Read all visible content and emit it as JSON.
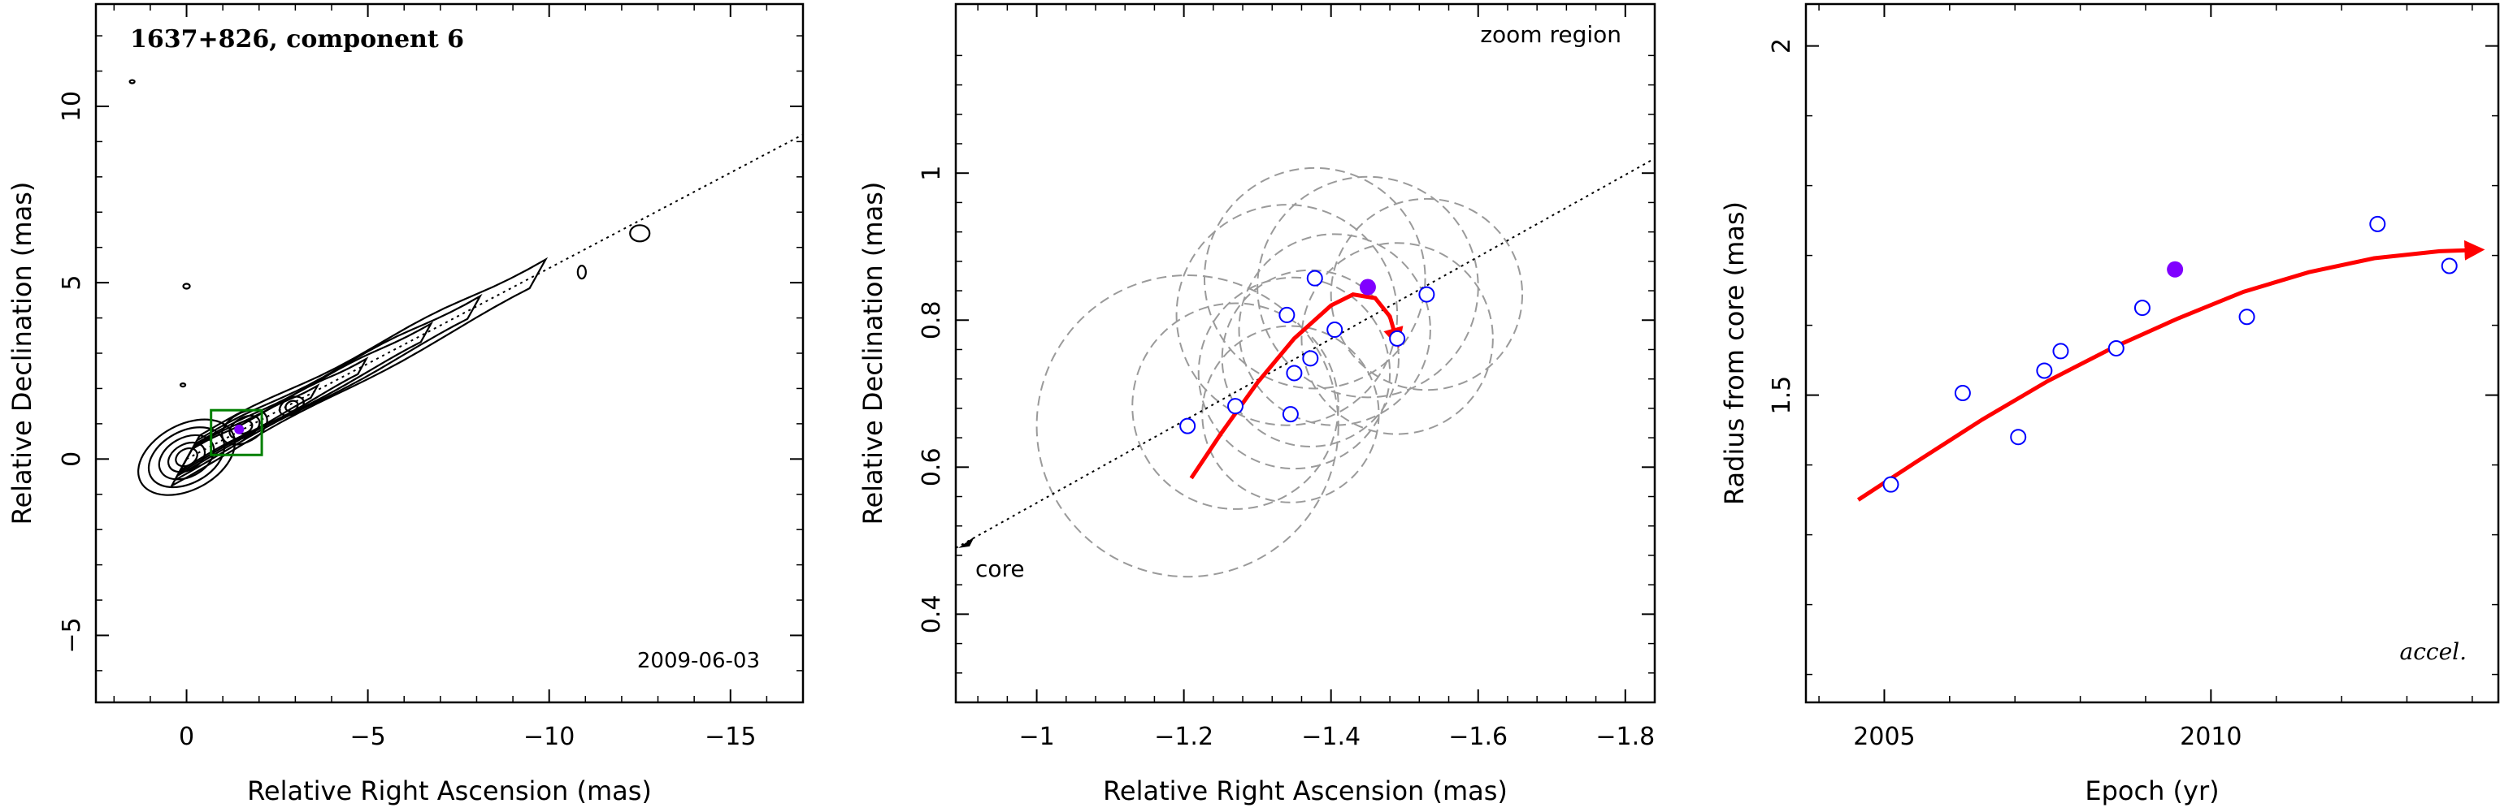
{
  "chart_data": [
    {
      "type": "contour",
      "title": "1637+826, component 6",
      "annotation": "2009-06-03",
      "xlabel": "Relative Right Ascension (mas)",
      "ylabel": "Relative Declination (mas)",
      "xlim": [
        2.5,
        -17
      ],
      "ylim": [
        -6.9,
        12.9
      ],
      "xticks": [
        0,
        -5,
        -10,
        -15
      ],
      "xtick_labels": [
        "0",
        "−5",
        "−10",
        "−15"
      ],
      "yticks": [
        -5,
        0,
        5,
        10
      ],
      "ytick_labels": [
        "−5",
        "0",
        "5",
        "10"
      ],
      "jet_axis_line": {
        "x": [
          0,
          -17
        ],
        "y": [
          0,
          9.2
        ]
      },
      "component_position": {
        "x": -1.45,
        "y": 0.84
      },
      "zoom_box": {
        "x": [
          -0.9,
          -1.85
        ],
        "y": [
          0.3,
          1.2
        ]
      }
    },
    {
      "type": "scatter",
      "title": "",
      "annotations": [
        "zoom region",
        "core"
      ],
      "xlabel": "Relative Right Ascension (mas)",
      "ylabel": "Relative Declination (mas)",
      "xlim": [
        -0.89,
        -1.84
      ],
      "ylim": [
        0.28,
        1.23
      ],
      "xticks": [
        -1,
        -1.2,
        -1.4,
        -1.6,
        -1.8
      ],
      "xtick_labels": [
        "−1",
        "−1.2",
        "−1.4",
        "−1.6",
        "−1.8"
      ],
      "yticks": [
        0.4,
        0.6,
        0.8,
        1
      ],
      "ytick_labels": [
        "0.4",
        "0.6",
        "0.8",
        "1"
      ],
      "open_points": {
        "x": [
          -1.205,
          -1.27,
          -1.34,
          -1.345,
          -1.35,
          -1.372,
          -1.378,
          -1.405,
          -1.49,
          -1.53
        ],
        "y": [
          0.656,
          0.683,
          0.807,
          0.672,
          0.728,
          0.748,
          0.857,
          0.787,
          0.775,
          0.835
        ]
      },
      "filled_point": {
        "x": -1.45,
        "y": 0.845
      },
      "error_circles": [
        {
          "x": -1.205,
          "y": 0.656,
          "r": 0.205
        },
        {
          "x": -1.27,
          "y": 0.683,
          "r": 0.14
        },
        {
          "x": -1.34,
          "y": 0.807,
          "r": 0.15
        },
        {
          "x": -1.345,
          "y": 0.672,
          "r": 0.12
        },
        {
          "x": -1.35,
          "y": 0.728,
          "r": 0.13
        },
        {
          "x": -1.372,
          "y": 0.748,
          "r": 0.12
        },
        {
          "x": -1.378,
          "y": 0.857,
          "r": 0.15
        },
        {
          "x": -1.405,
          "y": 0.787,
          "r": 0.13
        },
        {
          "x": -1.49,
          "y": 0.775,
          "r": 0.13
        },
        {
          "x": -1.53,
          "y": 0.835,
          "r": 0.13
        },
        {
          "x": -1.45,
          "y": 0.845,
          "r": 0.15
        }
      ],
      "trajectory": {
        "x": [
          -1.21,
          -1.25,
          -1.3,
          -1.35,
          -1.4,
          -1.43,
          -1.46,
          -1.48,
          -1.49
        ],
        "y": [
          0.585,
          0.645,
          0.715,
          0.775,
          0.82,
          0.835,
          0.83,
          0.805,
          0.77
        ]
      },
      "jet_axis_line": {
        "x": [
          -0.89,
          -1.84
        ],
        "y": [
          0.49,
          1.02
        ]
      }
    },
    {
      "type": "scatter",
      "title": "",
      "annotation": "accel.",
      "xlabel": "Epoch (yr)",
      "ylabel": "Radius from core (mas)",
      "xlim": [
        2003.8,
        2014.4
      ],
      "ylim": [
        1.06,
        2.06
      ],
      "xticks": [
        2005,
        2010
      ],
      "xtick_labels": [
        "2005",
        "2010"
      ],
      "yticks": [
        1.5,
        2
      ],
      "ytick_labels": [
        "1.5",
        "2"
      ],
      "x": [
        2005.1,
        2006.2,
        2007.05,
        2007.45,
        2007.7,
        2008.55,
        2008.95,
        2010.55,
        2012.55,
        2013.65
      ],
      "y": [
        1.372,
        1.503,
        1.44,
        1.535,
        1.563,
        1.567,
        1.625,
        1.612,
        1.745,
        1.685
      ],
      "filled_point": {
        "x": 2009.45,
        "y": 1.68
      },
      "fit": {
        "x": [
          2004.6,
          2005.5,
          2006.5,
          2007.5,
          2008.5,
          2009.5,
          2010.5,
          2011.5,
          2012.5,
          2013.5,
          2014.1
        ],
        "y": [
          1.35,
          1.405,
          1.465,
          1.52,
          1.568,
          1.61,
          1.648,
          1.676,
          1.696,
          1.706,
          1.708
        ]
      }
    }
  ]
}
